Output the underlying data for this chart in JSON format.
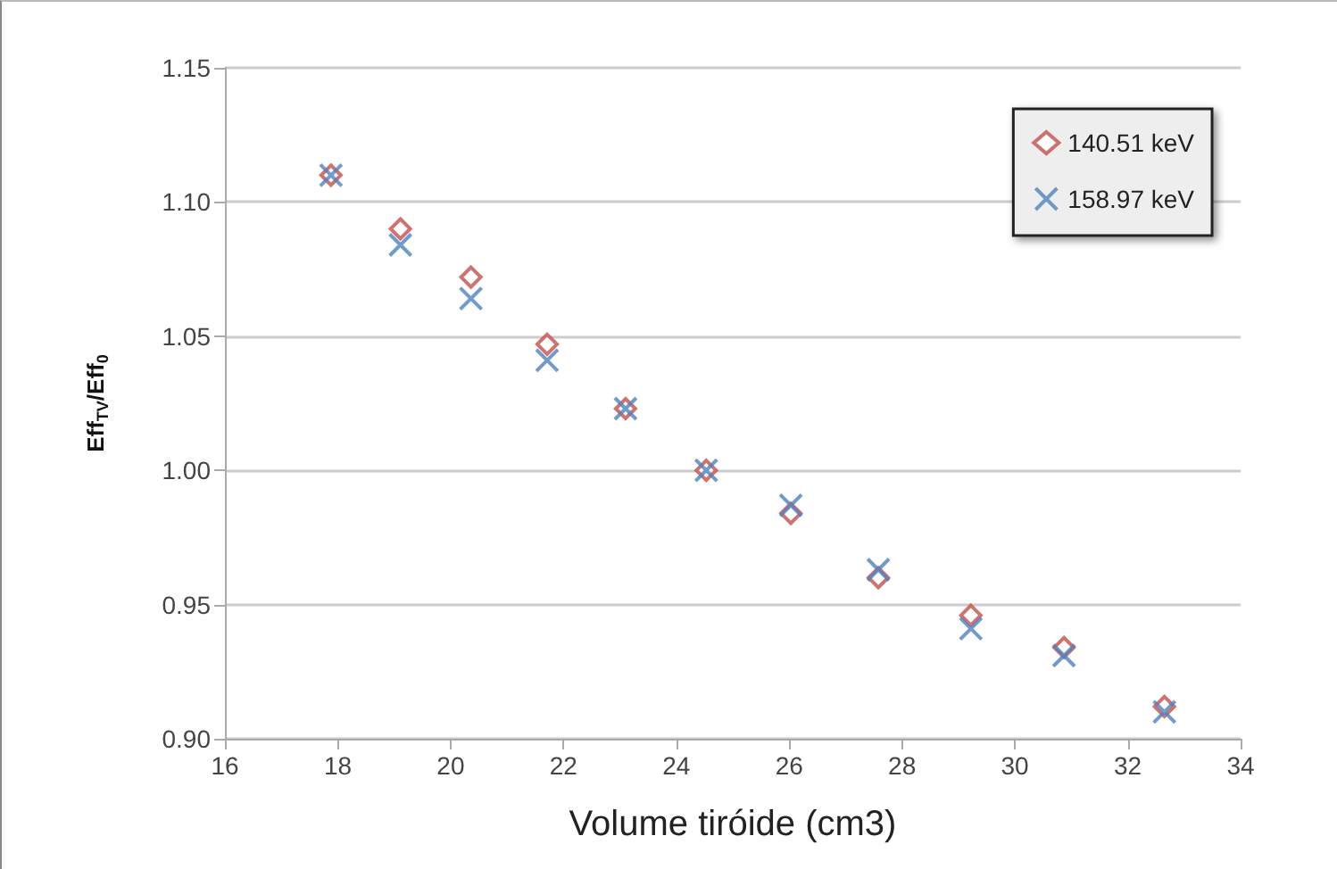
{
  "chart_data": {
    "type": "scatter",
    "xlabel": "Volume tiróide (cm3)",
    "ylabel": "Eff$_{TV}$/Eff$_{0}$",
    "xlim": [
      16,
      34
    ],
    "xticks": [
      16,
      18,
      20,
      22,
      24,
      26,
      28,
      30,
      32,
      34
    ],
    "ylim": [
      0.9,
      1.15
    ],
    "yticks": [
      {
        "value": 0.9,
        "label": "0.90"
      },
      {
        "value": 0.95,
        "label": "0.95"
      },
      {
        "value": 1.0,
        "label": "1.00"
      },
      {
        "value": 1.05,
        "label": "1.05"
      },
      {
        "value": 1.1,
        "label": "1.10"
      },
      {
        "value": 1.15,
        "label": "1.15"
      }
    ],
    "grid": "y",
    "legend": "top right",
    "x": [
      17.88,
      19.11,
      20.36,
      21.71,
      23.1,
      24.53,
      26.03,
      27.58,
      29.22,
      30.87,
      32.65
    ],
    "series": [
      {
        "name": "140.51 keV",
        "color": "#c0504d",
        "marker": "diamond",
        "values": [
          1.11,
          1.09,
          1.072,
          1.047,
          1.023,
          1.0,
          0.984,
          0.96,
          0.946,
          0.934,
          0.912
        ]
      },
      {
        "name": "158.97 keV",
        "color": "#4f81bd",
        "marker": "cross",
        "values": [
          1.11,
          1.084,
          1.064,
          1.041,
          1.023,
          1.0,
          0.987,
          0.963,
          0.941,
          0.931,
          0.91
        ]
      }
    ]
  }
}
